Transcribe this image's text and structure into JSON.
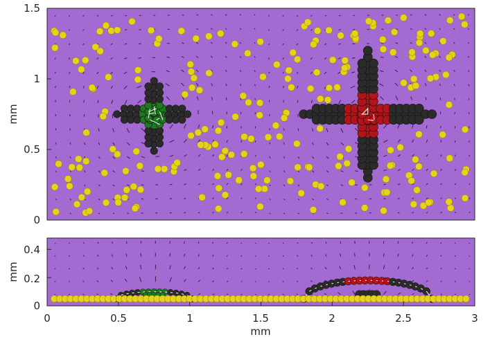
{
  "colors": {
    "background": "#a36ad1",
    "frame": "#262626",
    "yellow_bead": "#e6d21a",
    "dark_bead": "#2b2b2b",
    "green_bead": "#1f7a1f",
    "red_bead": "#b3141a",
    "link_white": "#ffffff",
    "arrow": "#3a1a4a"
  },
  "chart_data": [
    {
      "type": "scatter",
      "title": "",
      "view": "top",
      "xlabel": "",
      "ylabel": "mm",
      "xlim": [
        0,
        3
      ],
      "ylim": [
        0,
        1.5
      ],
      "yticks": [
        0,
        0.5,
        1,
        1.5
      ],
      "ytick_labels": [
        "0",
        "0.5",
        "1",
        "1.5"
      ],
      "grid": false,
      "particles": [
        {
          "name": "small-cross",
          "center": [
            0.75,
            0.75
          ],
          "arm_x": 0.26,
          "arm_y": 0.26,
          "core": 0.09,
          "core_color": "green"
        },
        {
          "name": "large-cross",
          "center": [
            2.25,
            0.75
          ],
          "arm_x": 0.45,
          "arm_y": 0.44,
          "core": 0.14,
          "core_color": "red"
        }
      ],
      "tracer_beads": "~220 yellow beads scattered uniformly in the domain"
    },
    {
      "type": "scatter",
      "title": "",
      "view": "side",
      "xlabel": "mm",
      "ylabel": "mm",
      "xlim": [
        0,
        3
      ],
      "ylim": [
        0,
        0.48
      ],
      "xticks": [
        0,
        0.5,
        1,
        1.5,
        2,
        2.5,
        3
      ],
      "xtick_labels": [
        "0",
        "0.5",
        "1",
        "1.5",
        "2",
        "2.5",
        "3"
      ],
      "yticks": [
        0,
        0.2,
        0.4
      ],
      "ytick_labels": [
        "0",
        "0.2",
        "0.4"
      ],
      "grid": false,
      "bead_row_height": 0.05,
      "particles": [
        {
          "name": "small-cross-side",
          "x_range": [
            0.48,
            1.02
          ],
          "peak_height": 0.1
        },
        {
          "name": "large-cross-side",
          "x_range": [
            1.8,
            2.7
          ],
          "peak_height": 0.18
        }
      ]
    }
  ]
}
